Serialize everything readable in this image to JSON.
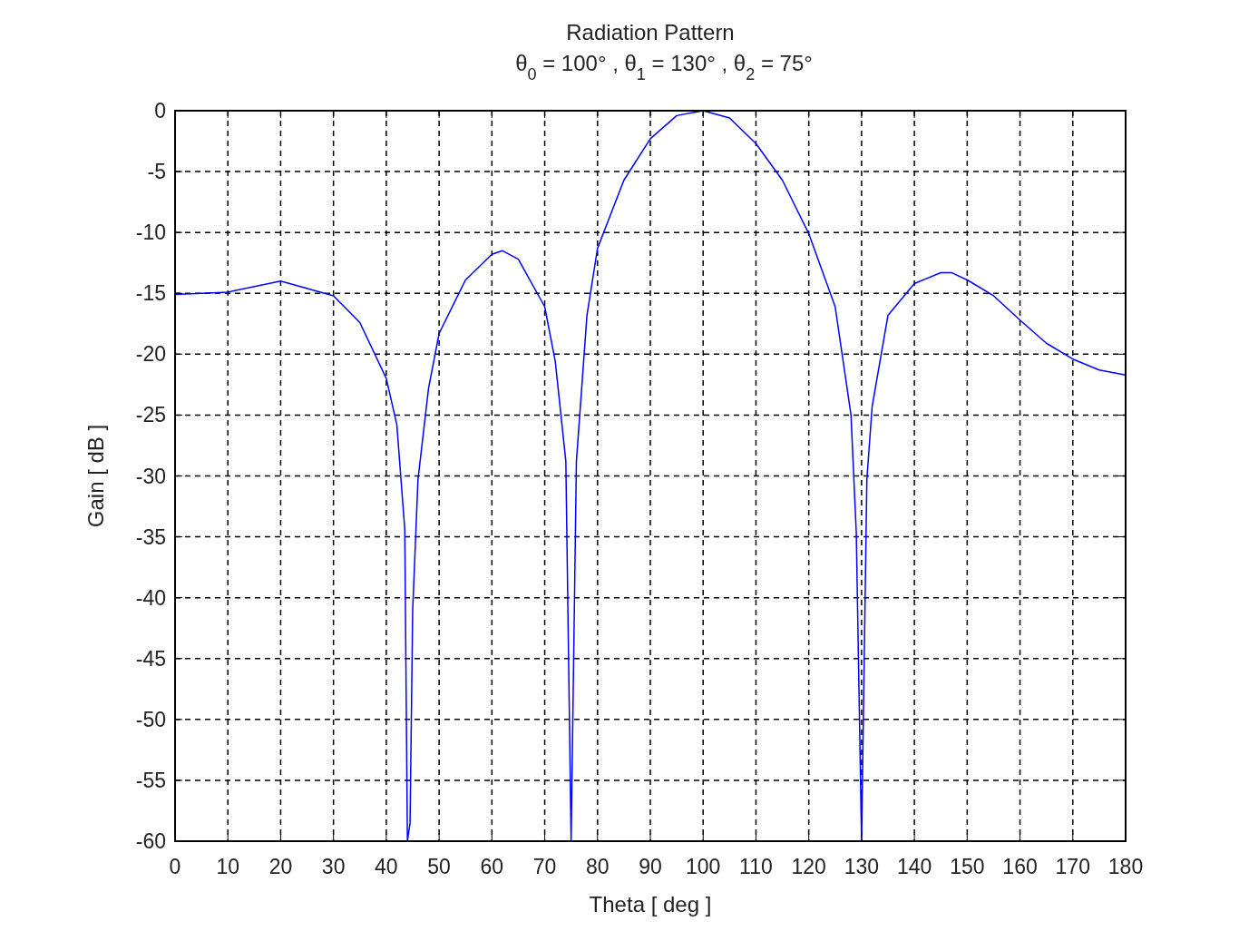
{
  "chart_data": {
    "type": "line",
    "title": "Radiation Pattern",
    "subtitle": "θ$_{0}$ = 100° , θ$_{1}$ = 130° , θ$_{2}$ = 75°",
    "xlabel": "Theta [ deg ]",
    "ylabel": "Gain [ dB ]",
    "x": [
      0,
      10,
      20,
      30,
      35,
      40,
      42,
      43.5,
      44,
      44.5,
      45,
      46,
      48,
      50,
      55,
      60,
      62,
      65,
      70,
      72,
      74,
      75,
      76,
      78,
      80,
      85,
      90,
      95,
      100,
      105,
      110,
      115,
      120,
      125,
      128,
      129,
      130,
      131,
      132,
      135,
      140,
      145,
      147,
      150,
      155,
      160,
      165,
      170,
      175,
      180
    ],
    "series": [
      {
        "color": "#0000ff",
        "values": [
          -15.1,
          -14.9,
          -14.0,
          -15.2,
          -17.4,
          -22,
          -25.8,
          -34.4,
          -60,
          -58.5,
          -41,
          -30.3,
          -22.8,
          -18.3,
          -13.9,
          -11.8,
          -11.5,
          -12.2,
          -16.1,
          -20.6,
          -28.8,
          -60,
          -28.8,
          -16.8,
          -11.3,
          -5.7,
          -2.3,
          -0.4,
          0,
          -0.6,
          -2.7,
          -5.7,
          -10.1,
          -16.1,
          -25,
          -34.7,
          -60,
          -30.3,
          -24.3,
          -16.8,
          -14.2,
          -13.3,
          -13.3,
          -13.9,
          -15.2,
          -17.2,
          -19.1,
          -20.4,
          -21.3,
          -21.7
        ]
      }
    ],
    "xlim": [
      0,
      180
    ],
    "xticks": [
      0,
      10,
      20,
      30,
      40,
      50,
      60,
      70,
      80,
      90,
      100,
      110,
      120,
      130,
      140,
      150,
      160,
      170,
      180
    ],
    "ylim": [
      -60,
      0
    ],
    "yticks": [
      -60,
      -55,
      -50,
      -45,
      -40,
      -35,
      -30,
      -25,
      -20,
      -15,
      -10,
      -5,
      0
    ],
    "grid": true,
    "line_style": "solid",
    "marker": "none"
  }
}
